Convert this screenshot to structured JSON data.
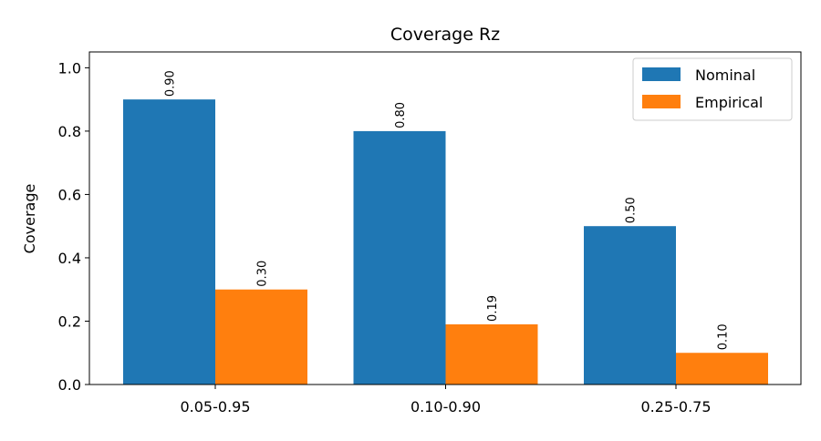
{
  "chart_data": {
    "type": "bar",
    "title": "Coverage Rz",
    "y_label": "Coverage",
    "categories": [
      "0.05-0.95",
      "0.10-0.90",
      "0.25-0.75"
    ],
    "series": [
      {
        "name": "Nominal",
        "color": "#1f77b4",
        "values": [
          0.9,
          0.8,
          0.5
        ],
        "value_labels": [
          "0.90",
          "0.80",
          "0.50"
        ]
      },
      {
        "name": "Empirical",
        "color": "#ff7f0e",
        "values": [
          0.3,
          0.19,
          0.1
        ],
        "value_labels": [
          "0.30",
          "0.19",
          "0.10"
        ]
      }
    ],
    "ylim": [
      0,
      1.05
    ],
    "yticks": [
      {
        "value": 0,
        "label": "0.0"
      },
      0.2,
      0.4,
      0.6,
      0.8,
      {
        "value": 1,
        "label": "1.0"
      }
    ],
    "legend": "upper right"
  }
}
